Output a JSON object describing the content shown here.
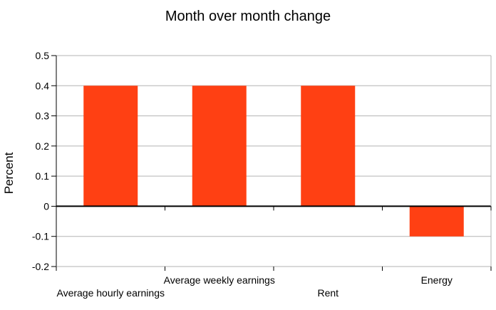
{
  "chart_data": {
    "type": "bar",
    "title": "Month over month change",
    "xlabel": "",
    "ylabel": "Percent",
    "categories": [
      "Average hourly earnings",
      "Average weekly earnings",
      "Rent",
      "Energy"
    ],
    "values": [
      0.4,
      0.4,
      0.4,
      -0.1
    ],
    "ylim": [
      -0.2,
      0.5
    ],
    "yticks": [
      "0.5",
      "0.4",
      "0.3",
      "0.2",
      "0.1",
      "0",
      "-0.1",
      "-0.2"
    ],
    "ytick_values": [
      0.5,
      0.4,
      0.3,
      0.2,
      0.1,
      0,
      -0.1,
      -0.2
    ],
    "grid": true,
    "legend": "none",
    "colors": {
      "bar": "#ff4013",
      "grid": "#b3b3b3",
      "axis": "#000000"
    }
  }
}
